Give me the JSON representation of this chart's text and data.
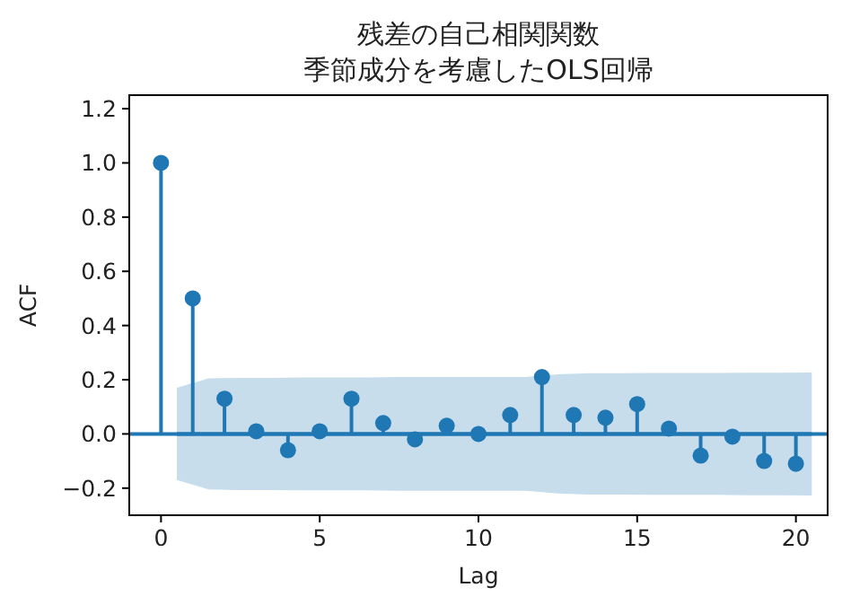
{
  "chart_data": {
    "type": "lollipop",
    "title": "残差の自己相関関数",
    "subtitle": "季節成分を考慮したOLS回帰",
    "xlabel": "Lag",
    "ylabel": "ACF",
    "x": [
      0,
      1,
      2,
      3,
      4,
      5,
      6,
      7,
      8,
      9,
      10,
      11,
      12,
      13,
      14,
      15,
      16,
      17,
      18,
      19,
      20
    ],
    "series": [
      {
        "type": "line",
        "color": "#1f77b4",
        "x": [
          0.5,
          1.5,
          2.5,
          3.5,
          4.5,
          5.5,
          6.5,
          7.5,
          8.5,
          9.5,
          10.5,
          11.5,
          12.5,
          13.5,
          14.5,
          15.5,
          16.5,
          17.5,
          18.5,
          19.5,
          20.5
        ],
        "values": [
          0,
          0,
          0,
          0,
          0,
          0,
          0,
          0,
          0,
          0,
          0,
          0,
          0,
          0,
          0,
          0,
          0,
          0,
          0,
          0,
          0
        ],
        "upper": [
          0.17,
          0.205,
          0.207,
          0.207,
          0.208,
          0.208,
          0.208,
          0.21,
          0.21,
          0.21,
          0.21,
          0.21,
          0.22,
          0.224,
          0.224,
          0.225,
          0.225,
          0.225,
          0.226,
          0.226,
          0.227
        ],
        "lower": [
          -0.17,
          -0.205,
          -0.207,
          -0.207,
          -0.208,
          -0.208,
          -0.208,
          -0.21,
          -0.21,
          -0.21,
          -0.21,
          -0.21,
          -0.22,
          -0.224,
          -0.224,
          -0.225,
          -0.225,
          -0.225,
          -0.226,
          -0.226,
          -0.227
        ]
      },
      {
        "type": "lollipop",
        "color": "#1f77b4",
        "marker": "circle",
        "values": [
          1.0,
          0.5,
          0.13,
          0.01,
          -0.06,
          0.01,
          0.13,
          0.04,
          -0.02,
          0.03,
          0.0,
          0.07,
          0.21,
          0.07,
          0.06,
          0.11,
          0.02,
          -0.08,
          -0.01,
          -0.1,
          -0.11
        ]
      }
    ],
    "ref_lines": [
      {
        "axis": "y",
        "value": 0,
        "color": "#1f77b4"
      }
    ],
    "xlim": [
      -1,
      21
    ],
    "ylim": [
      -0.3,
      1.25
    ],
    "xticks": [
      0,
      5,
      10,
      15,
      20
    ],
    "yticks": [
      {
        "value": -0.2,
        "label": "−0.2"
      },
      {
        "value": 0,
        "label": "0.0"
      },
      {
        "value": 0.2,
        "label": "0.2"
      },
      {
        "value": 0.4,
        "label": "0.4"
      },
      {
        "value": 0.6,
        "label": "0.6"
      },
      {
        "value": 0.8,
        "label": "0.8"
      },
      {
        "value": 1.0,
        "label": "1.0"
      },
      {
        "value": 1.2,
        "label": "1.2"
      }
    ]
  }
}
